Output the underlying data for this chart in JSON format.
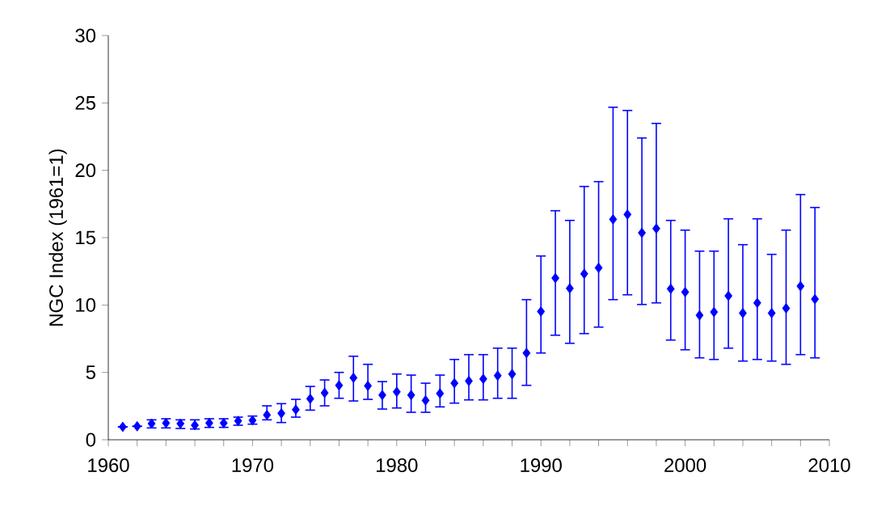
{
  "chart_data": {
    "type": "scatter",
    "ylabel": "NGC Index (1961=1)",
    "x": [
      1961,
      1962,
      1963,
      1964,
      1965,
      1966,
      1967,
      1968,
      1969,
      1970,
      1971,
      1972,
      1973,
      1974,
      1975,
      1976,
      1977,
      1978,
      1979,
      1980,
      1981,
      1982,
      1983,
      1984,
      1985,
      1986,
      1987,
      1988,
      1989,
      1990,
      1991,
      1992,
      1993,
      1994,
      1995,
      1996,
      1997,
      1998,
      1999,
      2000,
      2001,
      2002,
      2003,
      2004,
      2005,
      2006,
      2007,
      2008,
      2009
    ],
    "series": [
      {
        "color": "#0000ff",
        "values": [
          0.96,
          1.0,
          1.2,
          1.24,
          1.2,
          1.08,
          1.24,
          1.24,
          1.4,
          1.44,
          1.84,
          1.96,
          2.24,
          3.04,
          3.48,
          4.04,
          4.6,
          4.0,
          3.32,
          3.56,
          3.32,
          2.92,
          3.44,
          4.2,
          4.36,
          4.52,
          4.76,
          4.88,
          6.44,
          9.52,
          12.0,
          11.24,
          12.32,
          12.76,
          16.36,
          16.72,
          15.36,
          15.68,
          11.2,
          10.96,
          9.24,
          9.48,
          10.68,
          9.4,
          10.16,
          9.4,
          9.76,
          11.4,
          10.44
        ],
        "errors": [
          null,
          null,
          [
            0.88,
            1.48
          ],
          [
            0.88,
            1.56
          ],
          [
            0.84,
            1.48
          ],
          [
            0.8,
            1.48
          ],
          [
            0.92,
            1.56
          ],
          [
            0.92,
            1.56
          ],
          [
            1.08,
            1.68
          ],
          [
            1.16,
            1.76
          ],
          [
            1.48,
            2.52
          ],
          [
            1.28,
            2.68
          ],
          [
            1.68,
            3.0
          ],
          [
            2.2,
            3.96
          ],
          [
            2.52,
            4.44
          ],
          [
            3.08,
            5.0
          ],
          [
            2.88,
            6.2
          ],
          [
            3.0,
            5.6
          ],
          [
            2.28,
            4.32
          ],
          [
            2.36,
            4.88
          ],
          [
            2.04,
            4.8
          ],
          [
            2.04,
            4.2
          ],
          [
            2.44,
            4.8
          ],
          [
            2.72,
            5.96
          ],
          [
            2.96,
            6.32
          ],
          [
            2.96,
            6.32
          ],
          [
            3.08,
            6.8
          ],
          [
            3.08,
            6.8
          ],
          [
            4.04,
            10.4
          ],
          [
            6.44,
            13.64
          ],
          [
            7.76,
            17.0
          ],
          [
            7.16,
            16.28
          ],
          [
            7.88,
            18.8
          ],
          [
            8.36,
            19.16
          ],
          [
            10.4,
            24.68
          ],
          [
            10.76,
            24.44
          ],
          [
            10.04,
            22.4
          ],
          [
            10.16,
            23.48
          ],
          [
            7.4,
            16.28
          ],
          [
            6.68,
            15.56
          ],
          [
            6.08,
            14.0
          ],
          [
            5.96,
            14.0
          ],
          [
            6.8,
            16.4
          ],
          [
            5.84,
            14.48
          ],
          [
            5.96,
            16.4
          ],
          [
            5.84,
            13.76
          ],
          [
            5.6,
            15.56
          ],
          [
            6.32,
            18.2
          ],
          [
            6.08,
            17.24
          ]
        ]
      }
    ],
    "marker": "diamond",
    "grid": false,
    "xlim": [
      1960,
      2010
    ],
    "ylim": [
      0,
      30
    ],
    "xticks": [
      1960,
      {
        "value": 1962,
        "label": null
      },
      {
        "value": 1964,
        "label": null
      },
      {
        "value": 1966,
        "label": null
      },
      {
        "value": 1968,
        "label": null
      },
      1970,
      {
        "value": 1972,
        "label": null
      },
      {
        "value": 1974,
        "label": null
      },
      {
        "value": 1976,
        "label": null
      },
      {
        "value": 1978,
        "label": null
      },
      1980,
      {
        "value": 1982,
        "label": null
      },
      {
        "value": 1984,
        "label": null
      },
      {
        "value": 1986,
        "label": null
      },
      {
        "value": 1988,
        "label": null
      },
      1990,
      {
        "value": 1992,
        "label": null
      },
      {
        "value": 1994,
        "label": null
      },
      {
        "value": 1996,
        "label": null
      },
      {
        "value": 1998,
        "label": null
      },
      2000,
      {
        "value": 2002,
        "label": null
      },
      {
        "value": 2004,
        "label": null
      },
      {
        "value": 2006,
        "label": null
      },
      {
        "value": 2008,
        "label": null
      },
      2010
    ],
    "yticks": [
      0,
      5,
      10,
      15,
      20,
      25,
      30
    ]
  }
}
